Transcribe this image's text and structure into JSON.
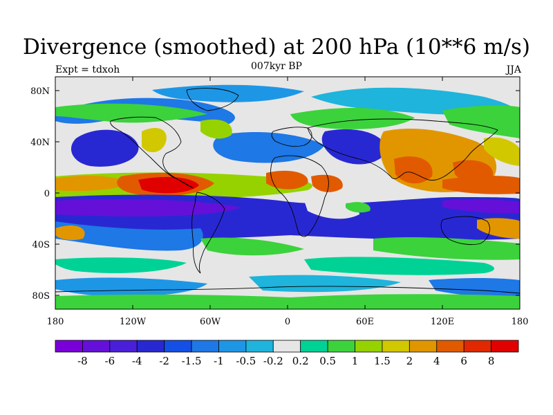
{
  "title": "Divergence (smoothed) at 200 hPa (10**6 m/s)",
  "subtitle": "007kyr BP",
  "left_label": "Expt = tdxoh",
  "right_label": "JJA",
  "map": {
    "lon_ticks": [
      "180",
      "120W",
      "60W",
      "0",
      "60E",
      "120E",
      "180"
    ],
    "lat_ticks": [
      "80N",
      "40N",
      "0",
      "40S",
      "80S"
    ]
  },
  "colorbar": {
    "labels": [
      "-8",
      "-6",
      "-4",
      "-2",
      "-1.5",
      "-1",
      "-0.5",
      "-0.2",
      "0.2",
      "0.5",
      "1",
      "1.5",
      "2",
      "4",
      "6",
      "8"
    ],
    "colors": [
      "#7a00d9",
      "#6410d9",
      "#4a1fd9",
      "#2828d2",
      "#1450e6",
      "#1e78e6",
      "#1e96e6",
      "#1eb4dc",
      "#e6e6e6",
      "#00d296",
      "#3cd23c",
      "#96d200",
      "#d2c800",
      "#e19600",
      "#e15a00",
      "#e12800",
      "#e10000"
    ]
  },
  "field_colors": {
    "background": "#e6e6e6",
    "ocean_blue_dark": "#2828d2",
    "ocean_blue_mid": "#1e78e6",
    "ocean_cyan": "#1eb4dc",
    "green": "#3cd23c",
    "teal": "#00d296",
    "yellow": "#d2c800",
    "orange": "#e19600",
    "red": "#e10000",
    "purple": "#6410d9"
  }
}
